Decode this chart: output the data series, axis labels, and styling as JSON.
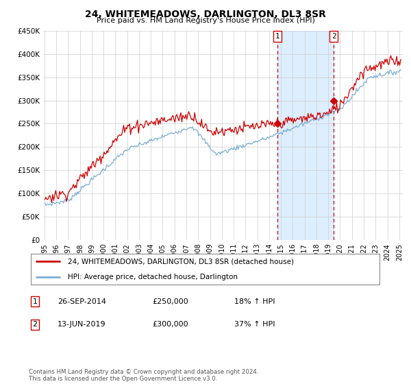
{
  "title": "24, WHITEMEADOWS, DARLINGTON, DL3 8SR",
  "subtitle": "Price paid vs. HM Land Registry's House Price Index (HPI)",
  "ylim": [
    0,
    450000
  ],
  "yticks": [
    0,
    50000,
    100000,
    150000,
    200000,
    250000,
    300000,
    350000,
    400000,
    450000
  ],
  "ytick_labels": [
    "£0",
    "£50K",
    "£100K",
    "£150K",
    "£200K",
    "£250K",
    "£300K",
    "£350K",
    "£400K",
    "£450K"
  ],
  "transaction1_date": "26-SEP-2014",
  "transaction1_price": 250000,
  "transaction1_hpi": "18% ↑ HPI",
  "transaction2_date": "13-JUN-2019",
  "transaction2_price": 300000,
  "transaction2_hpi": "37% ↑ HPI",
  "legend_line1": "24, WHITEMEADOWS, DARLINGTON, DL3 8SR (detached house)",
  "legend_line2": "HPI: Average price, detached house, Darlington",
  "footer": "Contains HM Land Registry data © Crown copyright and database right 2024.\nThis data is licensed under the Open Government Licence v3.0.",
  "sale_color": "#cc0000",
  "hpi_color": "#7bafd4",
  "shading_color": "#ddeeff",
  "vline_color": "#cc0000"
}
